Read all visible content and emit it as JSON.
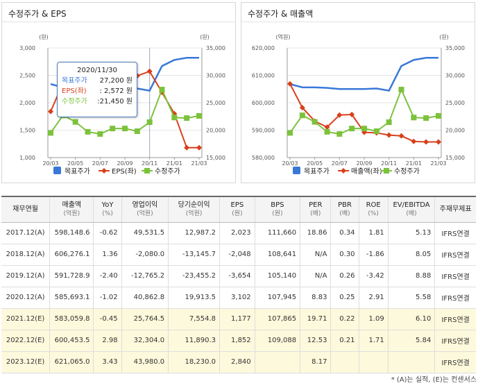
{
  "chart_data": [
    {
      "type": "line",
      "title": "수정주가 & EPS",
      "left_unit": "(원)",
      "right_unit": "(원)",
      "categories": [
        "20/03",
        "20/04",
        "20/05",
        "20/06",
        "20/07",
        "20/08",
        "20/09",
        "20/10",
        "20/11",
        "20/12",
        "21/01",
        "21/02",
        "21/03"
      ],
      "tick_labels": [
        "20/03",
        "20/05",
        "20/07",
        "20/09",
        "20/11",
        "21/01",
        "21/03"
      ],
      "left_axis": {
        "min": 1000,
        "max": 3000,
        "ticks": [
          "3,000",
          "2,500",
          "2,000",
          "1,500",
          "1,000"
        ]
      },
      "right_axis": {
        "min": 15000,
        "max": 35000,
        "ticks": [
          "35,000",
          "30,000",
          "25,000",
          "20,000",
          "15,000"
        ]
      },
      "series": [
        {
          "name": "목표주가",
          "axis": "right",
          "color": "#3a78d8",
          "marker": "none",
          "values": [
            28400,
            27800,
            27800,
            27700,
            27500,
            27500,
            27500,
            27600,
            27200,
            31700,
            32800,
            33200,
            33200
          ]
        },
        {
          "name": "EPS(좌)",
          "axis": "left",
          "color": "#d8401c",
          "marker": "diamond",
          "values": [
            1840,
            2360,
            2210,
            2580,
            2510,
            2590,
            2500,
            2490,
            2572,
            2190,
            1800,
            1180,
            1180
          ]
        },
        {
          "name": "수정주가",
          "axis": "right",
          "color": "#7cc23c",
          "marker": "square",
          "values": [
            19500,
            22700,
            21500,
            19700,
            19300,
            20300,
            20300,
            19800,
            21450,
            27400,
            22300,
            22200,
            22600
          ]
        }
      ],
      "tooltip": {
        "date": "2020/11/30",
        "rows": [
          {
            "label": "목표주가",
            "value": "27,200 원",
            "color": "#3a78d8"
          },
          {
            "label": "EPS(좌)",
            "value": ":   2,572 원",
            "color": "#d8401c"
          },
          {
            "label": "수정주가",
            "value": ":21,450 원",
            "color": "#7cc23c"
          }
        ]
      },
      "legend": [
        "목표주가",
        "EPS(좌)",
        "수정주가"
      ]
    },
    {
      "type": "line",
      "title": "수정주가 & 매출액",
      "left_unit": "(억원)",
      "right_unit": "(원)",
      "categories": [
        "20/03",
        "20/04",
        "20/05",
        "20/06",
        "20/07",
        "20/08",
        "20/09",
        "20/10",
        "20/11",
        "20/12",
        "21/01",
        "21/02",
        "21/03"
      ],
      "tick_labels": [
        "20/03",
        "20/05",
        "20/07",
        "20/09",
        "20/11",
        "21/01",
        "21/03"
      ],
      "left_axis": {
        "min": 580000,
        "max": 620000,
        "ticks": [
          "620,000",
          "610,000",
          "600,000",
          "590,000",
          "580,000"
        ]
      },
      "right_axis": {
        "min": 15000,
        "max": 35000,
        "ticks": [
          "35,000",
          "30,000",
          "25,000",
          "20,000",
          "15,000"
        ]
      },
      "series": [
        {
          "name": "목표주가",
          "axis": "right",
          "color": "#3a78d8",
          "marker": "none",
          "values": [
            28400,
            27800,
            27800,
            27700,
            27500,
            27500,
            27500,
            27600,
            27200,
            31700,
            32800,
            33200,
            33200
          ]
        },
        {
          "name": "매출액(좌)",
          "axis": "left",
          "color": "#d8401c",
          "marker": "diamond",
          "values": [
            606900,
            598200,
            593300,
            591100,
            595500,
            595700,
            589200,
            589000,
            588200,
            587900,
            585900,
            585700,
            585700
          ]
        },
        {
          "name": "수정주가",
          "axis": "right",
          "color": "#7cc23c",
          "marker": "square",
          "values": [
            19500,
            22700,
            21500,
            19700,
            19300,
            20300,
            20300,
            19800,
            21450,
            27400,
            22300,
            22200,
            22600
          ]
        }
      ],
      "legend": [
        "목표주가",
        "매출액(좌)",
        "수정주가"
      ]
    }
  ],
  "table": {
    "headers": [
      {
        "main": "재무연월",
        "sub": ""
      },
      {
        "main": "매출액",
        "sub": "(억원)"
      },
      {
        "main": "YoY",
        "sub": "(%)"
      },
      {
        "main": "영업이익",
        "sub": "(억원)"
      },
      {
        "main": "당기순이익",
        "sub": "(억원)"
      },
      {
        "main": "EPS",
        "sub": "(원)"
      },
      {
        "main": "BPS",
        "sub": "(원)"
      },
      {
        "main": "PER",
        "sub": "(배)"
      },
      {
        "main": "PBR",
        "sub": "(배)"
      },
      {
        "main": "ROE",
        "sub": "(%)"
      },
      {
        "main": "EV/EBITDA",
        "sub": "(배)"
      },
      {
        "main": "주재무제표",
        "sub": ""
      }
    ],
    "rows": [
      {
        "estimate": false,
        "cells": [
          "2017.12(A)",
          "598,148.6",
          "-0.62",
          "49,531.5",
          "12,987.2",
          "2,023",
          "111,660",
          "18.86",
          "0.34",
          "1.81",
          "5.13",
          "IFRS연결"
        ]
      },
      {
        "estimate": false,
        "cells": [
          "2018.12(A)",
          "606,276.1",
          "1.36",
          "-2,080.0",
          "-13,145.7",
          "-2,048",
          "108,641",
          "N/A",
          "0.30",
          "-1.86",
          "8.05",
          "IFRS연결"
        ]
      },
      {
        "estimate": false,
        "cells": [
          "2019.12(A)",
          "591,728.9",
          "-2.40",
          "-12,765.2",
          "-23,455.2",
          "-3,654",
          "105,140",
          "N/A",
          "0.26",
          "-3.42",
          "8.88",
          "IFRS연결"
        ]
      },
      {
        "estimate": false,
        "cells": [
          "2020.12(A)",
          "585,693.1",
          "-1.02",
          "40,862.8",
          "19,913.5",
          "3,102",
          "107,945",
          "8.83",
          "0.25",
          "2.91",
          "5.58",
          "IFRS연결"
        ]
      },
      {
        "estimate": true,
        "cells": [
          "2021.12(E)",
          "583,059.8",
          "-0.45",
          "25,764.5",
          "7,554.8",
          "1,177",
          "107,865",
          "19.71",
          "0.22",
          "1.09",
          "6.10",
          "IFRS연결"
        ]
      },
      {
        "estimate": true,
        "cells": [
          "2022.12(E)",
          "600,453.5",
          "2.98",
          "32,304.0",
          "11,890.3",
          "1,852",
          "109,088",
          "12.53",
          "0.21",
          "1.71",
          "5.84",
          "IFRS연결"
        ]
      },
      {
        "estimate": true,
        "cells": [
          "2023.12(E)",
          "621,065.0",
          "3.43",
          "43,980.0",
          "18,230.0",
          "2,840",
          "",
          "8.17",
          "",
          "",
          "",
          "IFRS연결"
        ]
      }
    ]
  },
  "footnote": "* (A)는 실적, (E)는 컨센서스"
}
